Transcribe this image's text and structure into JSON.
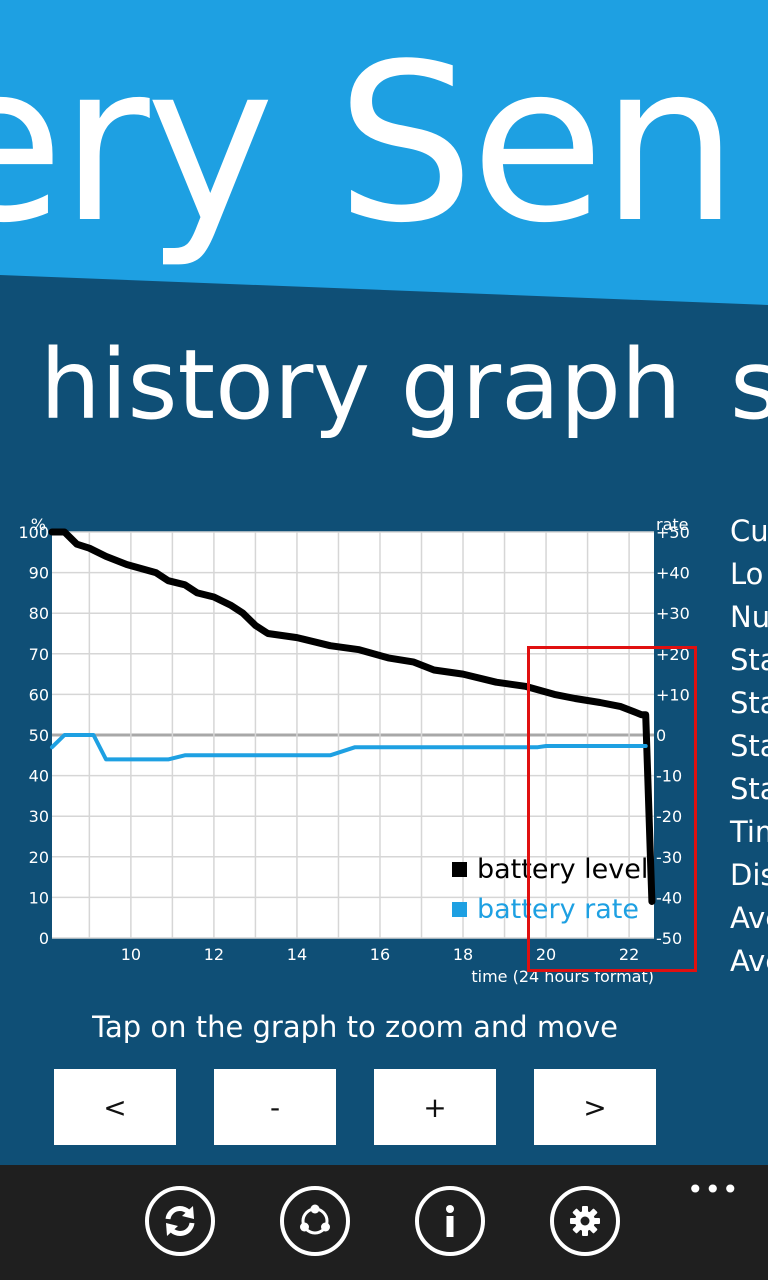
{
  "app": {
    "title": "ery Sen"
  },
  "pivot": {
    "current": "history graph",
    "next": "s"
  },
  "stats": {
    "labels": [
      "Cu",
      "Lo",
      "Nu",
      "Sta",
      "Sta",
      "Sta",
      "Sta",
      "Tim",
      "Dis",
      "Ave",
      "Ave"
    ]
  },
  "chart_data": {
    "type": "line",
    "left_axis_label": "%",
    "right_axis_label": "rate",
    "xlabel": "time (24 hours format)",
    "x_ticks": [
      10,
      12,
      14,
      16,
      18,
      20,
      22
    ],
    "y_ticks": [
      0,
      10,
      20,
      30,
      40,
      50,
      60,
      70,
      80,
      90,
      100
    ],
    "y2_ticks": [
      "+50",
      "+40",
      "+30",
      "+20",
      "+10",
      "0",
      "-10",
      "-20",
      "-30",
      "-40",
      "-50"
    ],
    "xlim": [
      8.1,
      22.6
    ],
    "ylim": [
      0,
      100
    ],
    "y2lim": [
      -50,
      50
    ],
    "grid": true,
    "legend_position": "bottom-right",
    "series": [
      {
        "name": "battery level",
        "color": "#000000",
        "axis": "left",
        "x": [
          8.1,
          8.4,
          8.7,
          9.0,
          9.4,
          9.9,
          10.6,
          10.9,
          11.3,
          11.6,
          12.0,
          12.4,
          12.7,
          13.0,
          13.3,
          14.0,
          14.8,
          15.5,
          16.2,
          16.8,
          17.3,
          18.0,
          18.8,
          19.5,
          20.2,
          20.7,
          21.3,
          21.8,
          22.3,
          22.4,
          22.55
        ],
        "y": [
          100,
          100,
          97,
          96,
          94,
          92,
          90,
          88,
          87,
          85,
          84,
          82,
          80,
          77,
          75,
          74,
          72,
          71,
          69,
          68,
          66,
          65,
          63,
          62,
          60,
          59,
          58,
          57,
          55,
          55,
          9
        ]
      },
      {
        "name": "battery rate",
        "color": "#1ea0e2",
        "axis": "right",
        "x": [
          8.1,
          8.4,
          9.1,
          9.4,
          10.9,
          11.3,
          14.8,
          15.4,
          19.8,
          20.0,
          22.4
        ],
        "y": [
          -3,
          0,
          0,
          -6,
          -6,
          -5,
          -5,
          -3,
          -3,
          -2.7,
          -2.7
        ]
      }
    ]
  },
  "hint": "Tap on the graph to zoom and move",
  "buttons": {
    "prev": "<",
    "zoom_out": "-",
    "zoom_in": "+",
    "next": ">"
  },
  "appbar": {
    "ellipsis": "•••",
    "icons": [
      "refresh-icon",
      "share-icon",
      "info-icon",
      "settings-icon"
    ]
  }
}
